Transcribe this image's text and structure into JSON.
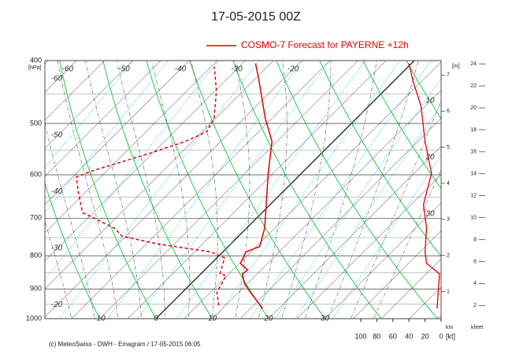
{
  "title": "17-05-2015  00Z",
  "footer": "(c) MeteoSwiss - DWH - Emagram  /  17-05-2015 06:05",
  "chart_data": {
    "type": "emagram",
    "y_label": "[hPa]",
    "log_y": true,
    "ylim": [
      1000,
      400
    ],
    "yticks": [
      400,
      500,
      600,
      700,
      800,
      900,
      1000
    ],
    "isotherm_labels_bottom": [
      -10,
      0,
      10,
      20,
      30
    ],
    "isotherm_labels_top": [
      -60,
      -50,
      -40,
      -30,
      -20
    ],
    "theta_labels": [
      -60,
      -50,
      -40,
      -30,
      -20
    ],
    "series": [
      {
        "name": "COSMO-7 Forecast for PAYERNE   +12h",
        "color": "#e00000",
        "dashed": false,
        "pressure": [
          964,
          912,
          882,
          853,
          841,
          822,
          789,
          774,
          725,
          667,
          597,
          533,
          491,
          426,
          404
        ],
        "values": [
          17.1,
          12.2,
          9.4,
          7.4,
          7.6,
          5.2,
          4.1,
          5.6,
          3.2,
          -0.7,
          -5.9,
          -10.9,
          -16.2,
          -24.5,
          -27.7
        ]
      },
      {
        "color": "#e00000",
        "dashed": true,
        "pressure": [
          954,
          912,
          877,
          858,
          853,
          806,
          789,
          767,
          746,
          725,
          686,
          640,
          605,
          593,
          556,
          533,
          515,
          491,
          445,
          409
        ],
        "values": [
          8.8,
          6.2,
          5.3,
          4.8,
          3.4,
          1.4,
          -2.1,
          -13,
          -20.7,
          -23.5,
          -31.9,
          -36.1,
          -39.3,
          -37.8,
          -30.5,
          -26.3,
          -24.2,
          -25.3,
          -29.8,
          -34.4
        ]
      }
    ],
    "wind": {
      "x_label": "[kt]",
      "xlim": [
        100,
        0
      ],
      "xticks": [
        100,
        80,
        60,
        40,
        20,
        0
      ],
      "color": "#e00000",
      "pressure": [
        964,
        853,
        822,
        789,
        725,
        667,
        597,
        533,
        470,
        430,
        404
      ],
      "values": [
        5,
        2,
        18,
        20,
        18,
        22,
        12,
        20,
        25,
        35,
        40
      ],
      "labels": [
        10,
        20,
        30
      ]
    },
    "km_axis": {
      "label": "km",
      "unit_label": "[m]",
      "ylim": [
        0.25,
        7.4
      ],
      "yticks": [
        1,
        2,
        3,
        4,
        5,
        6,
        7
      ]
    },
    "kfeet_axis": {
      "label": "kfeet",
      "ylim": [
        0.8,
        24.3
      ],
      "yticks": [
        2,
        4,
        6,
        8,
        10,
        12,
        14,
        16,
        18,
        20,
        22,
        24
      ]
    }
  }
}
